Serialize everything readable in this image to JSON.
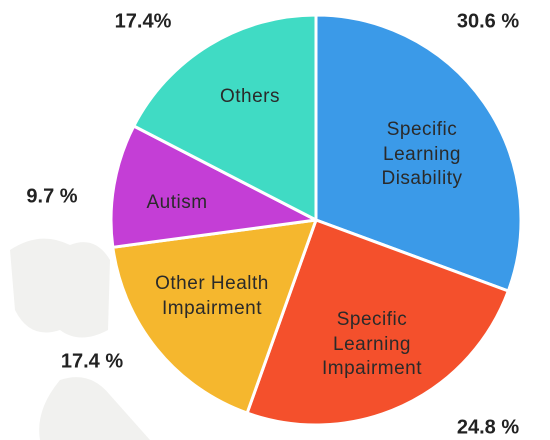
{
  "chart_data": {
    "type": "pie",
    "categories": [
      "Specific Learning Disability",
      "Specific Learning Impairment",
      "Other Health Impairment",
      "Autism",
      "Others"
    ],
    "values": [
      30.6,
      24.8,
      17.4,
      9.7,
      17.4
    ],
    "value_labels": [
      "30.6 %",
      "24.8 %",
      "17.4 %",
      "9.7 %",
      "17.4%"
    ],
    "colors": [
      "#3b9ae8",
      "#f4502c",
      "#f5b72e",
      "#c43ed6",
      "#40dbc4"
    ]
  }
}
